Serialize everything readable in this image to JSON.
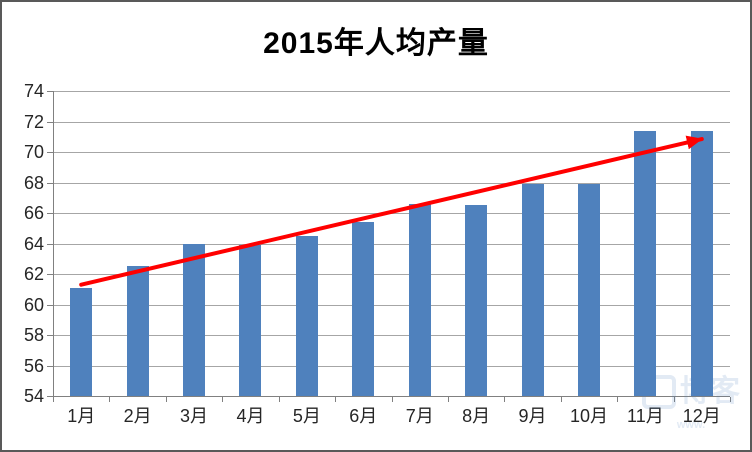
{
  "chart_data": {
    "type": "bar",
    "title": "2015年人均产量",
    "categories": [
      "1月",
      "2月",
      "3月",
      "4月",
      "5月",
      "6月",
      "7月",
      "8月",
      "9月",
      "10月",
      "11月",
      "12月"
    ],
    "values": [
      61.1,
      62.5,
      64.0,
      63.9,
      64.5,
      65.4,
      66.6,
      66.5,
      67.9,
      67.9,
      71.4,
      71.4
    ],
    "xlabel": "",
    "ylabel": "",
    "ylim": [
      54,
      74
    ],
    "yticks": [
      54,
      56,
      58,
      60,
      62,
      64,
      66,
      68,
      70,
      72,
      74
    ],
    "grid": "horizontal",
    "legend_position": "none",
    "bar_color": "#4f81bd",
    "gridline_color": "#a6a6a6",
    "axis_color": "#808080",
    "label_color": "#262626",
    "trend_arrow": {
      "color": "#ff0000",
      "start": {
        "category_index": 0,
        "value": 61.3
      },
      "end": {
        "category_index": 11,
        "value": 70.85
      }
    }
  },
  "watermark": {
    "text": "博客",
    "subtext": "www."
  }
}
